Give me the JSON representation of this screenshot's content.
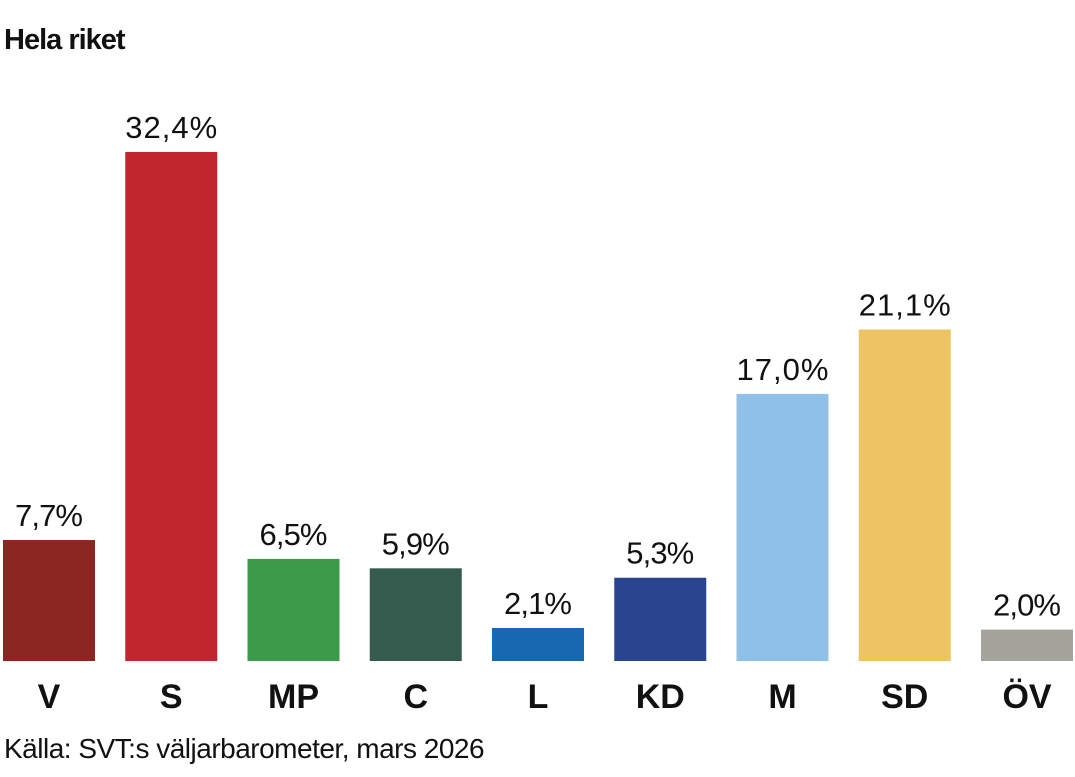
{
  "chart_data": {
    "type": "bar",
    "title": "Hela riket",
    "categories": [
      "V",
      "S",
      "MP",
      "C",
      "L",
      "KD",
      "M",
      "SD",
      "ÖV"
    ],
    "values": [
      7.7,
      32.4,
      6.5,
      5.9,
      2.1,
      5.3,
      17.0,
      21.1,
      2.0
    ],
    "value_labels": [
      "7,7%",
      "32,4%",
      "6,5%",
      "5,9%",
      "2,1%",
      "5,3%",
      "17,0%",
      "21,1%",
      "2,0%"
    ],
    "colors": [
      "#8B2622",
      "#C0262D",
      "#3D9A4A",
      "#355B4E",
      "#1668B0",
      "#2A4590",
      "#8FC0E8",
      "#EDC462",
      "#A5A49C"
    ],
    "xlabel": "",
    "ylabel": "",
    "ylim": [
      0,
      38
    ],
    "grid": false,
    "source": "Källa: SVT:s väljarbarometer, mars 2026"
  }
}
